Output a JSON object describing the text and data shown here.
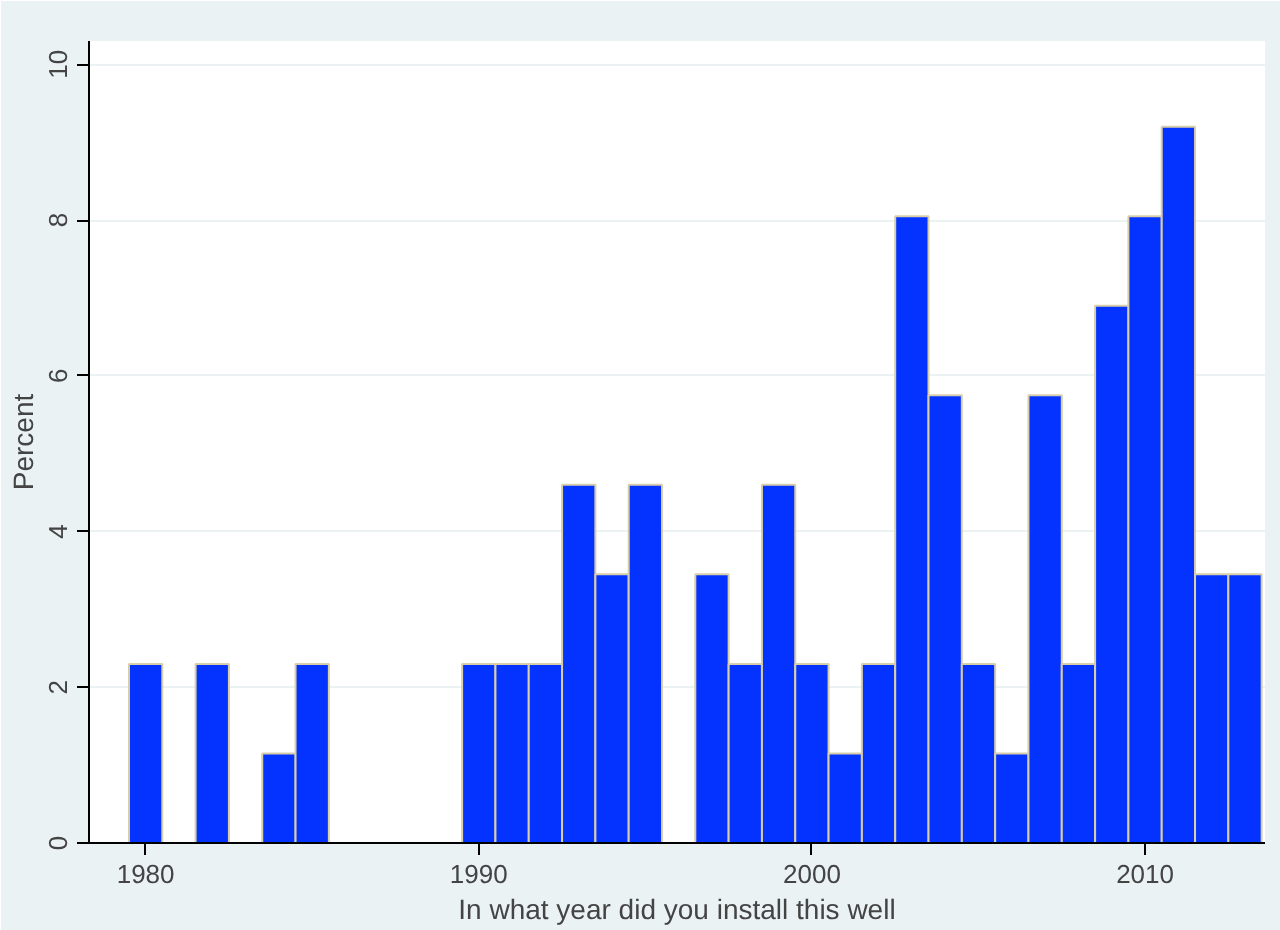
{
  "chart_data": {
    "type": "histogram",
    "xlabel": "In what year did you install this well",
    "ylabel": "Percent",
    "bins": [
      1979.5,
      1980.5,
      1981.5,
      1982.5,
      1983.5,
      1984.5,
      1985.5,
      1986.5,
      1987.5,
      1988.5,
      1989.5,
      1990.5,
      1991.5,
      1992.5,
      1993.5,
      1994.5,
      1995.5,
      1996.5,
      1997.5,
      1998.5,
      1999.5,
      2000.5,
      2001.5,
      2002.5,
      2003.5,
      2004.5,
      2005.5,
      2006.5,
      2007.5,
      2008.5,
      2009.5,
      2010.5,
      2011.5,
      2012.5,
      2013.5
    ],
    "values": [
      2.3,
      0,
      2.3,
      0,
      1.15,
      2.3,
      0,
      0,
      0,
      0,
      2.3,
      2.3,
      2.3,
      4.6,
      3.45,
      4.6,
      0,
      3.45,
      2.3,
      4.6,
      2.3,
      1.15,
      2.3,
      8.05,
      5.75,
      2.3,
      1.15,
      5.75,
      2.3,
      6.9,
      8.05,
      9.2,
      3.45,
      3.45
    ],
    "color": "#0433ff",
    "xlim": [
      1978.3,
      2013.6
    ],
    "ylim": [
      0,
      10.3
    ],
    "xticks": [
      1980,
      1990,
      2000,
      2010
    ],
    "yticks": [
      0,
      2,
      4,
      6,
      8,
      10
    ],
    "grid": "y"
  }
}
